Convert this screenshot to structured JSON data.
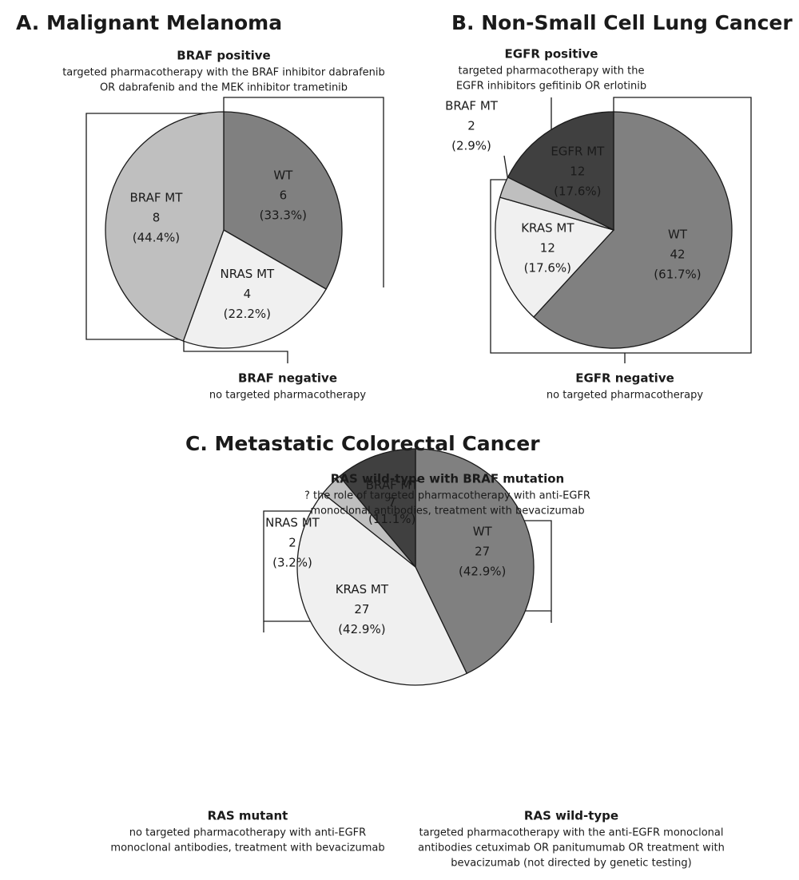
{
  "chart_data": [
    {
      "type": "pie",
      "title": "A. Malignant Melanoma",
      "categories": [
        "WT",
        "NRAS MT",
        "BRAF MT"
      ],
      "counts": [
        6,
        4,
        8
      ],
      "values": [
        33.3,
        22.2,
        44.4
      ],
      "value_labels": [
        "(33.3%)",
        "(22.2%)",
        "(44.4%)"
      ],
      "colors": [
        "#808080",
        "#f0f0f0",
        "#bfbfbf"
      ],
      "annotations": [
        {
          "title": "BRAF positive",
          "lines": [
            "targeted pharmacotherapy with the BRAF inhibitor dabrafenib",
            "OR dabrafenib and the MEK inhibitor  trametinib"
          ]
        },
        {
          "title": "BRAF negative",
          "lines": [
            "no targeted pharmacotherapy"
          ]
        }
      ]
    },
    {
      "type": "pie",
      "title": "B. Non-Small Cell Lung Cancer",
      "categories": [
        "WT",
        "KRAS MT",
        "BRAF MT",
        "EGFR MT"
      ],
      "counts": [
        42,
        12,
        2,
        12
      ],
      "values": [
        61.7,
        17.6,
        2.9,
        17.6
      ],
      "value_labels": [
        "(61.7%)",
        "(17.6%)",
        "(2.9%)",
        "(17.6%)"
      ],
      "colors": [
        "#808080",
        "#f0f0f0",
        "#bfbfbf",
        "#404040"
      ],
      "annotations": [
        {
          "title": "EGFR positive",
          "lines": [
            "targeted pharmacotherapy with the",
            "EGFR inhibitors gefitinib OR erlotinib"
          ]
        },
        {
          "title": "EGFR negative",
          "lines": [
            "no targeted pharmacotherapy"
          ]
        }
      ]
    },
    {
      "type": "pie",
      "title": "C. Metastatic Colorectal Cancer",
      "categories": [
        "WT",
        "KRAS MT",
        "NRAS MT",
        "BRAF MT"
      ],
      "counts": [
        27,
        27,
        2,
        7
      ],
      "values": [
        42.9,
        42.9,
        3.2,
        11.1
      ],
      "value_labels": [
        "(42.9%)",
        "(42.9%)",
        "(3.2%)",
        "(11.1%)"
      ],
      "colors": [
        "#808080",
        "#f0f0f0",
        "#bfbfbf",
        "#404040"
      ],
      "annotations": [
        {
          "title": "RAS wild-type with BRAF mutation",
          "lines": [
            "? the role of targeted pharmacotherapy with anti-EGFR",
            "monoclonal antibodies, treatment with bevacizumab"
          ]
        },
        {
          "title": "RAS mutant",
          "lines": [
            "no targeted pharmacotherapy with anti-EGFR",
            "monoclonal antibodies, treatment with bevacizumab"
          ]
        },
        {
          "title": "RAS wild-type",
          "lines": [
            "targeted pharmacotherapy  with the anti-EGFR monoclonal",
            "antibodies cetuximab OR panitumumab  OR treatment with",
            "bevacizumab (not directed by genetic testing)"
          ]
        }
      ]
    }
  ]
}
